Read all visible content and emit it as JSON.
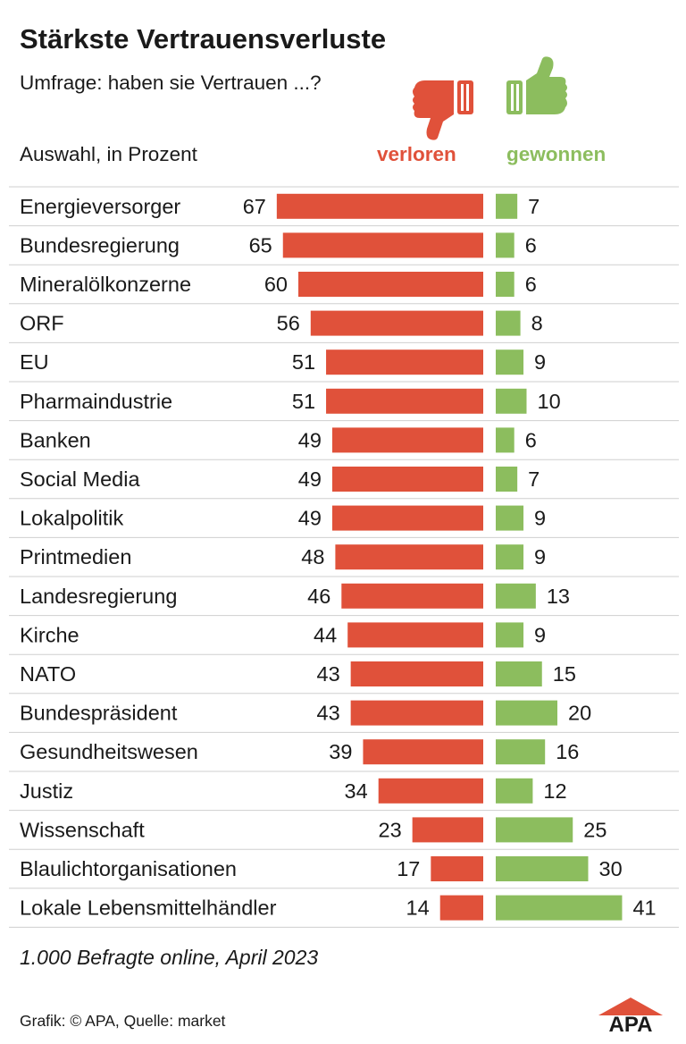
{
  "header": {
    "title": "Stärkste Vertrauensverluste",
    "subtitle": "Umfrage: haben sie Vertrauen ...?",
    "unit_label": "Auswahl, in Prozent"
  },
  "legend": {
    "lost_label": "verloren",
    "won_label": "gewonnen",
    "lost_icon": "thumbs-down-icon",
    "won_icon": "thumbs-up-icon"
  },
  "colors": {
    "lost": "#e0513a",
    "won": "#8cbd5e",
    "separator": "#cfcfcf"
  },
  "chart_data": {
    "type": "bar",
    "orientation": "horizontal",
    "categories": [
      "Energieversorger",
      "Bundesregierung",
      "Mineralölkonzerne",
      "ORF",
      "EU",
      "Pharmaindustrie",
      "Banken",
      "Social Media",
      "Lokalpolitik",
      "Printmedien",
      "Landesregierung",
      "Kirche",
      "NATO",
      "Bundespräsident",
      "Gesundheitswesen",
      "Justiz",
      "Wissenschaft",
      "Blaulichtorganisationen",
      "Lokale Lebensmittelhändler"
    ],
    "series": [
      {
        "name": "verloren",
        "values": [
          67,
          65,
          60,
          56,
          51,
          51,
          49,
          49,
          49,
          48,
          46,
          44,
          43,
          43,
          39,
          34,
          23,
          17,
          14
        ]
      },
      {
        "name": "gewonnen",
        "values": [
          7,
          6,
          6,
          8,
          9,
          10,
          6,
          7,
          9,
          9,
          13,
          9,
          15,
          20,
          16,
          12,
          25,
          30,
          41
        ]
      }
    ]
  },
  "footer": {
    "note": "1.000 Befragte online, April 2023",
    "credit": "Grafik: © APA, Quelle: market",
    "logo_text": "APA"
  }
}
